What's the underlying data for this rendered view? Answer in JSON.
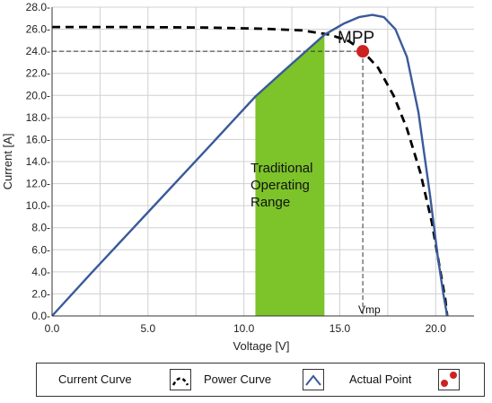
{
  "chart_data": {
    "type": "line",
    "xlabel": "Voltage [V]",
    "ylabel": "Current [A]",
    "xlim": [
      0,
      22
    ],
    "ylim": [
      0,
      28
    ],
    "x_ticks": [
      "0.0",
      "5.0",
      "10.0",
      "15.0",
      "20.0"
    ],
    "y_ticks": [
      "0.0-",
      "2.0-",
      "4.0-",
      "6.0-",
      "8.0-",
      "10.0-",
      "12.0-",
      "14.0-",
      "16.0-",
      "18.0-",
      "20.0-",
      "22.0-",
      "24.0-",
      "26.0-",
      "28.0-"
    ],
    "grid": true,
    "series": [
      {
        "name": "Current Curve",
        "style": "dashed",
        "color": "#000000",
        "x": [
          0,
          4,
          8,
          11,
          13,
          14.5,
          15.5,
          16.2,
          17,
          17.8,
          18.5,
          19.2,
          19.8,
          20.2,
          20.5,
          20.6
        ],
        "y": [
          26.2,
          26.2,
          26.15,
          26.05,
          25.9,
          25.5,
          24.9,
          24.0,
          22.5,
          20.0,
          17.0,
          13.0,
          8.5,
          4.5,
          1.5,
          0
        ]
      },
      {
        "name": "Power Curve",
        "style": "solid",
        "color": "#3a5a9a",
        "x": [
          0,
          2,
          5,
          8,
          10.6,
          12,
          14.2,
          15.2,
          16,
          16.7,
          17.3,
          17.9,
          18.5,
          19.1,
          19.7,
          20.1,
          20.4,
          20.6
        ],
        "y": [
          0,
          3.8,
          9.4,
          15.0,
          19.9,
          22.1,
          25.5,
          26.5,
          27.1,
          27.3,
          27.1,
          26.0,
          23.5,
          18.5,
          11.0,
          5.5,
          2.0,
          0
        ]
      }
    ],
    "highlight_range": {
      "label": "Traditional Operating Range",
      "x": [
        10.6,
        14.2
      ],
      "color": "#7dc32a"
    },
    "annotations": {
      "mpp_label": "MPP",
      "vmp_label": "Vmp",
      "mpp_point": {
        "x": 16.2,
        "y": 24.0,
        "color": "#cc2222"
      }
    },
    "legend": {
      "position": "bottom",
      "items": [
        {
          "label": "Current Curve",
          "icon": "dashed-arc-icon"
        },
        {
          "label": "Power Curve",
          "icon": "solid-arc-icon"
        },
        {
          "label": "Actual Point",
          "icon": "red-dots-icon"
        }
      ]
    }
  }
}
